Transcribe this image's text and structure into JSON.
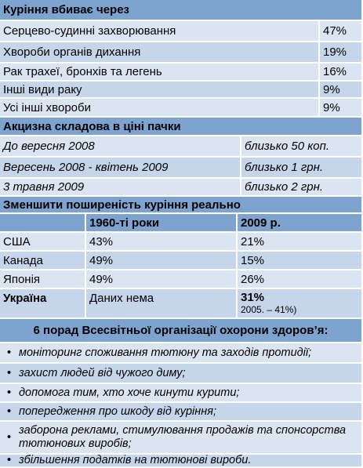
{
  "causes": {
    "title": "Куріння вбиває через",
    "rows": [
      [
        "Серцево-судинні захворювання",
        "47%"
      ],
      [
        "Хвороби органів дихання",
        "19%"
      ],
      [
        "Рак трахеї, бронхів та легень",
        "16%"
      ],
      [
        "Інші  види раку",
        "9%"
      ],
      [
        "Усі інші хвороби",
        "9%"
      ]
    ]
  },
  "excise": {
    "title": "Акцизна складова в ціні пачки",
    "rows": [
      [
        "До  вересня 2008",
        "близько 50 коп."
      ],
      [
        "Вересень 2008 - квітень 2009",
        "близько 1 грн."
      ],
      [
        "3 травня 2009",
        "близько 2 грн."
      ]
    ]
  },
  "prevalence": {
    "title": "Зменшити  поширеність куріння  реально",
    "header": [
      "1960-ті  роки",
      "2009 р."
    ],
    "rows": [
      [
        "США",
        "43%",
        "21%"
      ],
      [
        "Канада",
        "49%",
        "15%"
      ],
      [
        "Японія",
        "49%",
        "26%"
      ]
    ],
    "ukraine": {
      "country": "Україна",
      "v1960": "Даних нема",
      "v2009": "31%",
      "note": "2005.  – 41%)"
    }
  },
  "advice": {
    "title": "6 порад Всесвітньої  організації охорони  здоров’я:",
    "items": [
      "моніторинг споживання тютюну та заходів протидії;",
      "захист людей від чужого диму;",
      "допомога тим, хто хоче кинути курити;",
      "попередження про шкоду від куріння;",
      "заборона реклами, стимулювання продажів та спонсорства тютюнових виробів;",
      "збільшення податків на тютюнові вироби."
    ]
  }
}
